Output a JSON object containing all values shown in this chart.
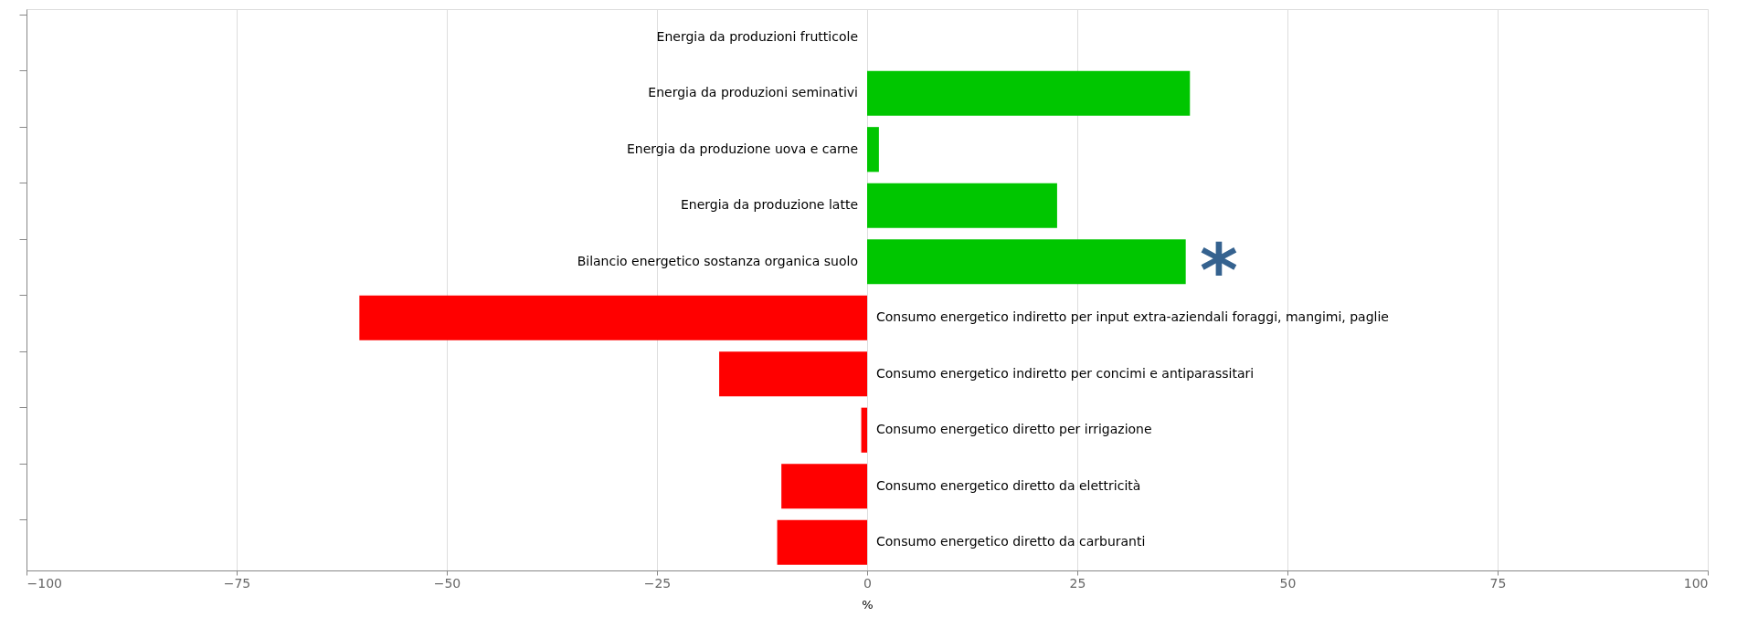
{
  "chart_data": {
    "type": "bar",
    "orientation": "horizontal",
    "categories": [
      "Energia da produzioni frutticole",
      "Energia da produzioni seminativi",
      "Energia da produzione uova e carne",
      "Energia da produzione latte",
      "Bilancio energetico sostanza organica suolo",
      "Consumo energetico indiretto per input extra-aziendali foraggi, mangimi, paglie",
      "Consumo energetico indiretto per concimi e antiparassitari",
      "Consumo energetico diretto per irrigazione",
      "Consumo energetico diretto da elettricità",
      "Consumo energetico diretto da carburanti"
    ],
    "values": [
      0,
      38.4,
      1.4,
      22.6,
      37.9,
      -60.4,
      -17.6,
      -0.7,
      -10.2,
      -10.7
    ],
    "colors": [
      "#00c600",
      "#00c600",
      "#00c600",
      "#00c600",
      "#00c600",
      "#ff0000",
      "#ff0000",
      "#ff0000",
      "#ff0000",
      "#ff0000"
    ],
    "xlim": [
      -100,
      100
    ],
    "xticks": [
      -100,
      -75,
      -50,
      -25,
      0,
      25,
      50,
      75,
      100
    ],
    "xlabel": "%",
    "grid": "x",
    "legend": false,
    "annotations": [
      "*"
    ]
  }
}
